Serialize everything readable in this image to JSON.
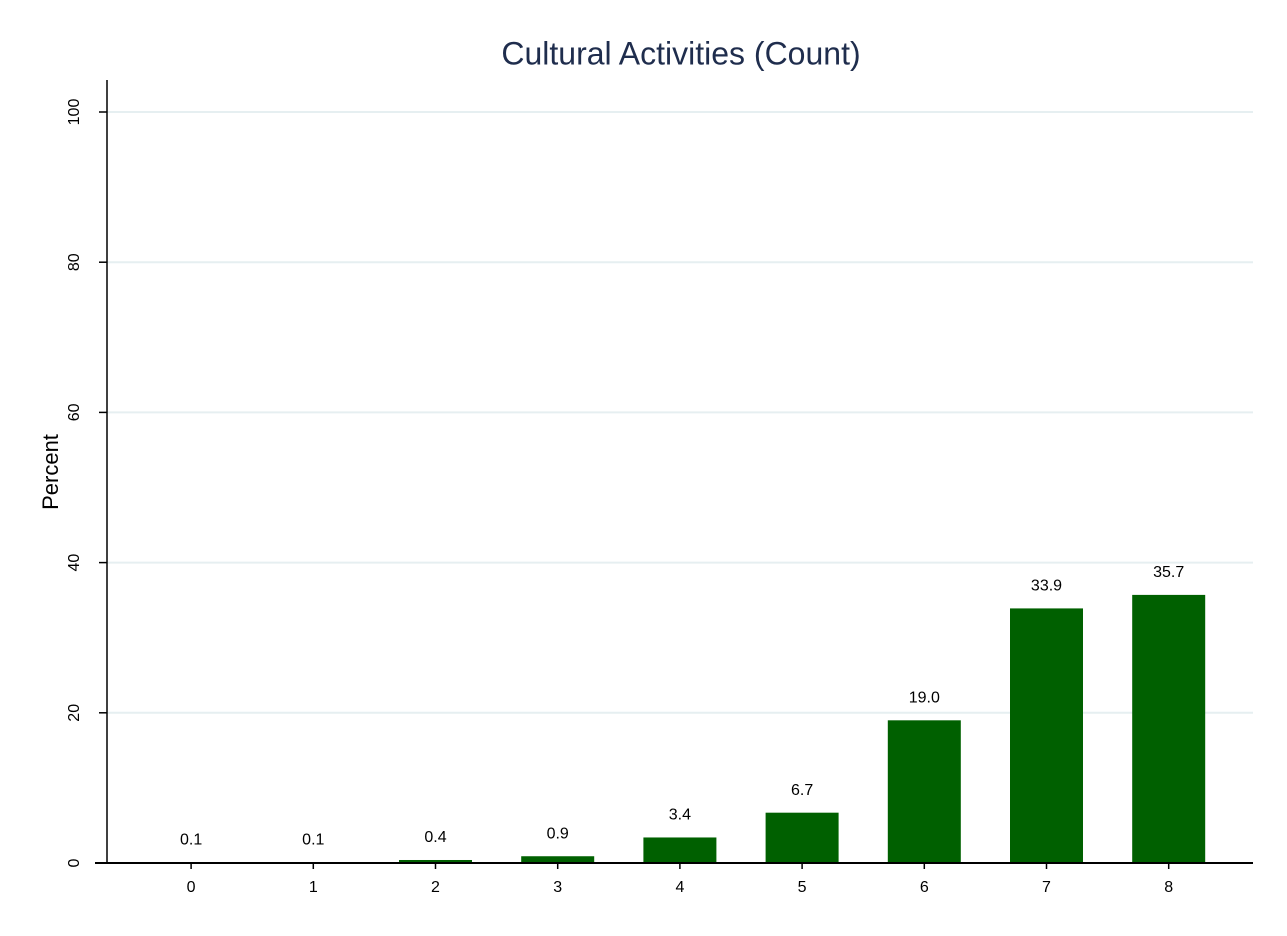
{
  "chart_data": {
    "type": "bar",
    "title": "Cultural Activities (Count)",
    "y_label": "Percent",
    "categories": [
      "0",
      "1",
      "2",
      "3",
      "4",
      "5",
      "6",
      "7",
      "8"
    ],
    "values": [
      0.1,
      0.1,
      0.4,
      0.9,
      3.4,
      6.7,
      19.0,
      33.9,
      35.7
    ],
    "value_labels": [
      "0.1",
      "0.1",
      "0.4",
      "0.9",
      "3.4",
      "6.7",
      "19.0",
      "33.9",
      "35.7"
    ],
    "color": "#006000",
    "ylim": [
      0,
      100
    ],
    "yticks": [
      0,
      20,
      40,
      60,
      80,
      100
    ],
    "grid": true
  }
}
